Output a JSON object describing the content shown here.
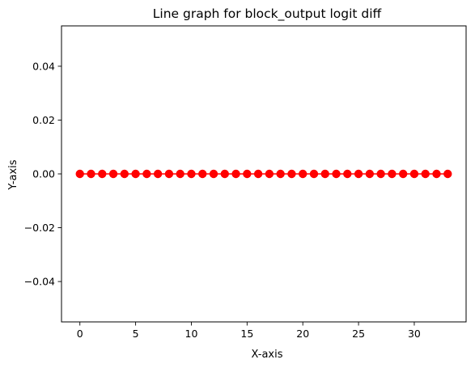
{
  "chart_data": {
    "type": "line",
    "title": "Line graph for block_output logit diff",
    "xlabel": "X-axis",
    "ylabel": "Y-axis",
    "xlim": [
      -1.65,
      34.65
    ],
    "ylim": [
      -0.055,
      0.055
    ],
    "xticks": [
      0,
      5,
      10,
      15,
      20,
      25,
      30
    ],
    "xtick_labels": [
      "0",
      "5",
      "10",
      "15",
      "20",
      "25",
      "30"
    ],
    "yticks": [
      -0.04,
      -0.02,
      0.0,
      0.02,
      0.04
    ],
    "ytick_labels": [
      "−0.04",
      "−0.02",
      "0.00",
      "0.02",
      "0.04"
    ],
    "grid": false,
    "colors": {
      "series": "#ff0000",
      "axes": "#000000",
      "background": "#ffffff"
    },
    "series": [
      {
        "marker": "circle",
        "x": [
          0,
          1,
          2,
          3,
          4,
          5,
          6,
          7,
          8,
          9,
          10,
          11,
          12,
          13,
          14,
          15,
          16,
          17,
          18,
          19,
          20,
          21,
          22,
          23,
          24,
          25,
          26,
          27,
          28,
          29,
          30,
          31,
          32,
          33
        ],
        "y": [
          0,
          0,
          0,
          0,
          0,
          0,
          0,
          0,
          0,
          0,
          0,
          0,
          0,
          0,
          0,
          0,
          0,
          0,
          0,
          0,
          0,
          0,
          0,
          0,
          0,
          0,
          0,
          0,
          0,
          0,
          0,
          0,
          0,
          0
        ]
      }
    ]
  }
}
